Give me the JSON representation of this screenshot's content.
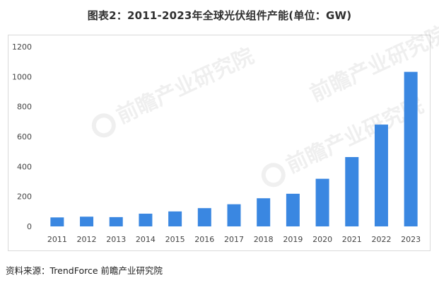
{
  "title": "图表2：2011-2023年全球光伏组件产能(单位：GW)",
  "source": "资料来源：TrendForce 前瞻产业研究院",
  "watermark": "前瞻产业研究院",
  "colors": {
    "bar": "#3a87e1",
    "axis_text": "#444444",
    "frame": "#d9d9d9"
  },
  "chart_data": {
    "type": "bar",
    "title": "图表2：2011-2023年全球光伏组件产能(单位：GW)",
    "xlabel": "",
    "ylabel": "",
    "categories": [
      "2011",
      "2012",
      "2013",
      "2014",
      "2015",
      "2016",
      "2017",
      "2018",
      "2019",
      "2020",
      "2021",
      "2022",
      "2023"
    ],
    "values": [
      60,
      65,
      62,
      85,
      100,
      122,
      148,
      188,
      218,
      318,
      463,
      680,
      1032
    ],
    "ylim": [
      0,
      1200
    ],
    "yticks": [
      0,
      200,
      400,
      600,
      800,
      1000,
      1200
    ],
    "grid": false,
    "legend": "none"
  }
}
